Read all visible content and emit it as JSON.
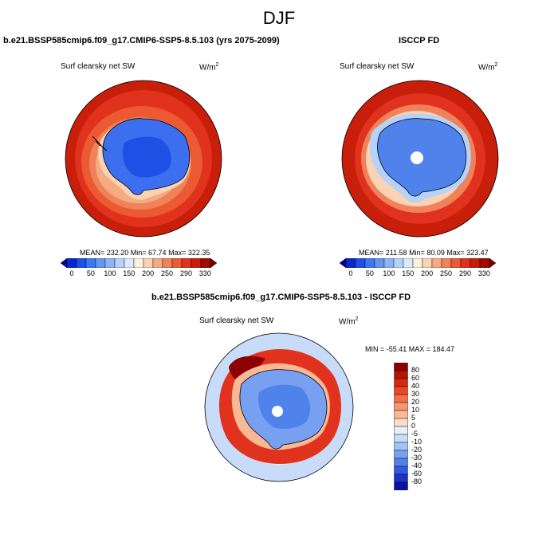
{
  "figure": {
    "title": "DJF",
    "panels": [
      {
        "id": "model",
        "title": "b.e21.BSSP585cmip6.f09_g17.CMIP6-SSP5-8.5.103 (yrs 2075-2099)",
        "variable": "Surf clearsky net SW",
        "units_base": "W/m",
        "units_exp": "2",
        "stats": "MEAN= 232.20  Min=  67.74  Max= 322.35"
      },
      {
        "id": "obs",
        "title": "ISCCP FD",
        "variable": "Surf clearsky net SW",
        "units_base": "W/m",
        "units_exp": "2",
        "stats": "MEAN= 211.58  Min=  80.09  Max= 323.47"
      },
      {
        "id": "diff",
        "title": "b.e21.BSSP585cmip6.f09_g17.CMIP6-SSP5-8.5.103 - ISCCP FD",
        "variable": "Surf clearsky net SW",
        "units_base": "W/m",
        "units_exp": "2",
        "stats": "MIN = -55.41 MAX = 184.47"
      }
    ],
    "colorbar_horizontal": {
      "tick_labels": [
        "0",
        "50",
        "100",
        "150",
        "200",
        "250",
        "290",
        "330"
      ],
      "colors": [
        "#00009a",
        "#0a28c8",
        "#1e50e6",
        "#3c78f0",
        "#6496f0",
        "#8cb4f5",
        "#b4d2fa",
        "#dcebfc",
        "#fff0dc",
        "#fad2b4",
        "#f5aa82",
        "#f0825a",
        "#eb5a32",
        "#e1321e",
        "#c81e0a",
        "#a00a00",
        "#780000"
      ]
    },
    "colorbar_vertical": {
      "tick_labels": [
        "80",
        "60",
        "40",
        "30",
        "20",
        "10",
        "5",
        "0",
        "-5",
        "-10",
        "-20",
        "-30",
        "-40",
        "-60",
        "-80"
      ],
      "colors": [
        "#8c0000",
        "#b41400",
        "#d72814",
        "#eb4628",
        "#f56e46",
        "#f5966e",
        "#fab996",
        "#fcdcc8",
        "#e6f0fa",
        "#c8dcfa",
        "#a0c3f5",
        "#78a0f0",
        "#5082eb",
        "#2d5ae1",
        "#1e32c8",
        "#0a14a0"
      ]
    }
  }
}
